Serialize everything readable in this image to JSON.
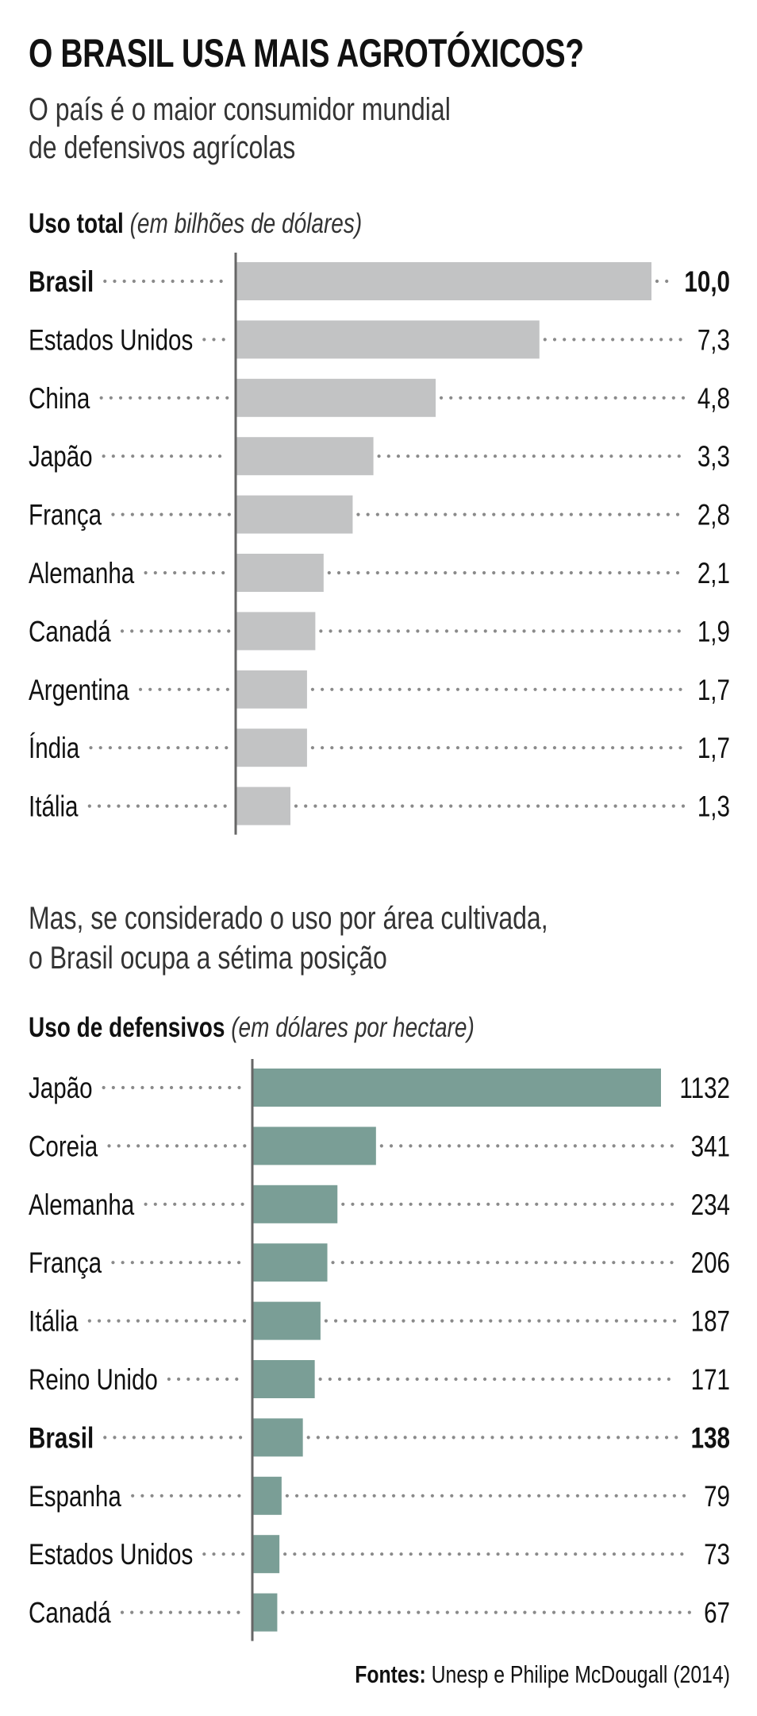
{
  "title": "O BRASIL USA MAIS AGROTÓXICOS?",
  "subtitle": [
    "O país é o maior consumidor mundial",
    "de defensivos agrícolas"
  ],
  "subtitle2": [
    "Mas, se considerado o uso por área cultivada,",
    "o Brasil ocupa a sétima posição"
  ],
  "footer": {
    "label": "Fontes:",
    "text": "Unesp e Philipe McDougall (2014)"
  },
  "colors": {
    "chart1_bar": "#c2c3c4",
    "chart2_bar": "#7a9e96",
    "axis": "#666666",
    "dots": "#8a8a8a"
  },
  "chart_data": [
    {
      "type": "bar",
      "orientation": "horizontal",
      "title": "Uso total",
      "subtitle": "(em bilhões de dólares)",
      "categories": [
        "Brasil",
        "Estados Unidos",
        "China",
        "Japão",
        "França",
        "Alemanha",
        "Canadá",
        "Argentina",
        "Índia",
        "Itália"
      ],
      "values": [
        10.0,
        7.3,
        4.8,
        3.3,
        2.8,
        2.1,
        1.9,
        1.7,
        1.7,
        1.3
      ],
      "value_labels": [
        "10,0",
        "7,3",
        "4,8",
        "3,3",
        "2,8",
        "2,1",
        "1,9",
        "1,7",
        "1,7",
        "1,3"
      ],
      "highlight": "Brasil",
      "xlim": [
        0,
        10
      ],
      "grid": false
    },
    {
      "type": "bar",
      "orientation": "horizontal",
      "title": "Uso de defensivos",
      "subtitle": "(em dólares  por hectare)",
      "categories": [
        "Japão",
        "Coreia",
        "Alemanha",
        "França",
        "Itália",
        "Reino Unido",
        "Brasil",
        "Espanha",
        "Estados Unidos",
        "Canadá"
      ],
      "values": [
        1132,
        341,
        234,
        206,
        187,
        171,
        138,
        79,
        73,
        67
      ],
      "value_labels": [
        "1132",
        "341",
        "234",
        "206",
        "187",
        "171",
        "138",
        "79",
        "73",
        "67"
      ],
      "highlight": "Brasil",
      "xlim": [
        0,
        1132
      ],
      "grid": false
    }
  ]
}
